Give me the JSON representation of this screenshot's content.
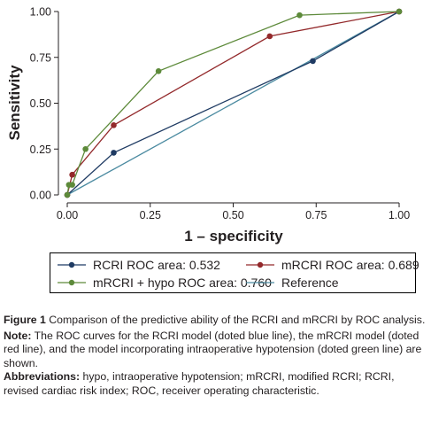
{
  "chart_data": {
    "type": "line",
    "xlabel": "1 – specificity",
    "ylabel": "Sensitivity",
    "xlim": [
      0,
      1
    ],
    "ylim": [
      0,
      1
    ],
    "x_ticks": [
      "0.00",
      "0.25",
      "0.50",
      "0.75",
      "1.00"
    ],
    "y_ticks": [
      "0.00",
      "0.25",
      "0.50",
      "0.75",
      "1.00"
    ],
    "grid": false,
    "legend_position": "bottom",
    "series": [
      {
        "name": "RCRI ROC area: 0.532",
        "color": "#1f3b63",
        "markers": true,
        "x": [
          0,
          0.14,
          0.74,
          1.0
        ],
        "y": [
          0,
          0.23,
          0.73,
          1.0
        ]
      },
      {
        "name": "mRCRI ROC area: 0.689",
        "color": "#93292b",
        "markers": true,
        "x": [
          0,
          0.015,
          0.14,
          0.61,
          1.0
        ],
        "y": [
          0,
          0.11,
          0.38,
          0.865,
          1.0
        ]
      },
      {
        "name": "mRCRI + hypo ROC area: 0.760",
        "color": "#5d8a3a",
        "markers": true,
        "x": [
          0,
          0.005,
          0.015,
          0.055,
          0.275,
          0.7,
          1.0
        ],
        "y": [
          0,
          0.055,
          0.055,
          0.25,
          0.675,
          0.98,
          1.0
        ]
      },
      {
        "name": "Reference",
        "color": "#4a8aa0",
        "markers": false,
        "x": [
          0,
          1.0
        ],
        "y": [
          0,
          1.0
        ]
      }
    ]
  },
  "caption": {
    "figure_label": "Figure 1",
    "figure_text": "Comparison of the predictive ability of the RCRI and mRCRI by ROC analysis.",
    "note_label": "Note:",
    "note_text": "The ROC curves for the RCRI model (doted blue line), the mRCRI model (doted red line), and the model incorporating intraoperative hypotension (doted green line) are shown.",
    "abbr_label": "Abbreviations:",
    "abbr_text": "hypo, intraoperative hypotension; mRCRI, modified RCRI; RCRI, revised cardiac risk index; ROC, receiver operating characteristic."
  }
}
